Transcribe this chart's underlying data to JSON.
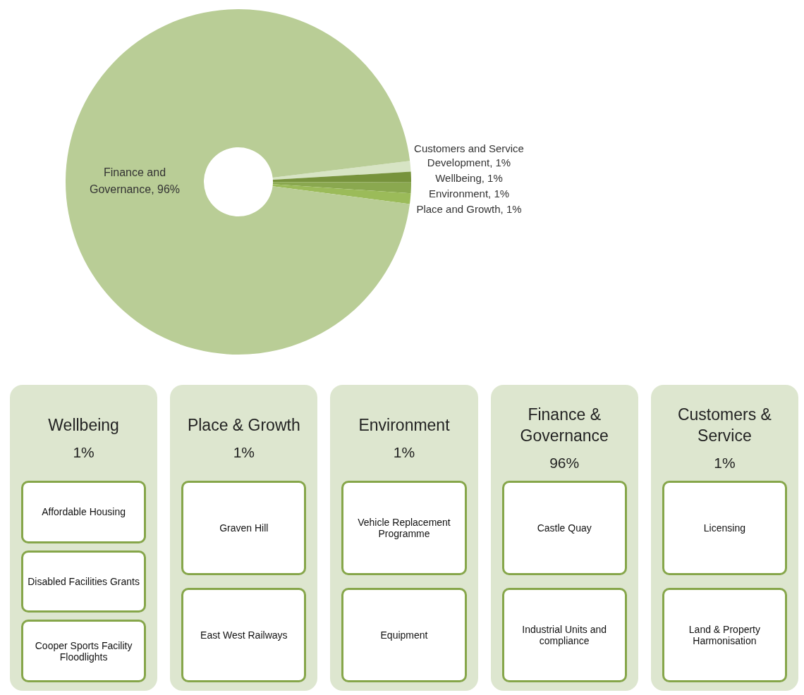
{
  "chart_data": [
    {
      "type": "donut",
      "categories": [
        "Customers and Service Development",
        "Wellbeing",
        "Environment",
        "Place and Growth",
        "Finance and Governance"
      ],
      "values": [
        1,
        1,
        1,
        1,
        96
      ],
      "value_labels": [
        "1%",
        "1%",
        "1%",
        "1%",
        "96%"
      ],
      "colors": [
        "#d7e4c4",
        "#77933c",
        "#8aa84f",
        "#9bbb59",
        "#b9cd96"
      ]
    },
    {
      "type": "other",
      "title": "Wellbeing",
      "subtitle": "1%",
      "annotations": [
        "Affordable Housing",
        "Disabled Facilities Grants",
        "Cooper Sports Facility Floodlights"
      ]
    },
    {
      "type": "other",
      "title": "Place & Growth",
      "subtitle": "1%",
      "annotations": [
        "Graven Hill",
        "East West Railways"
      ]
    },
    {
      "type": "other",
      "title": "Environment",
      "subtitle": "1%",
      "annotations": [
        "Vehicle Replacement Programme",
        "Equipment"
      ]
    },
    {
      "type": "other",
      "title": "Finance & Governance",
      "subtitle": "96%",
      "annotations": [
        "Castle Quay",
        "Industrial Units and compliance"
      ]
    },
    {
      "type": "other",
      "title": "Customers & Service",
      "subtitle": "1%",
      "annotations": [
        "Licensing",
        "Land & Property Harmonisation"
      ]
    }
  ]
}
